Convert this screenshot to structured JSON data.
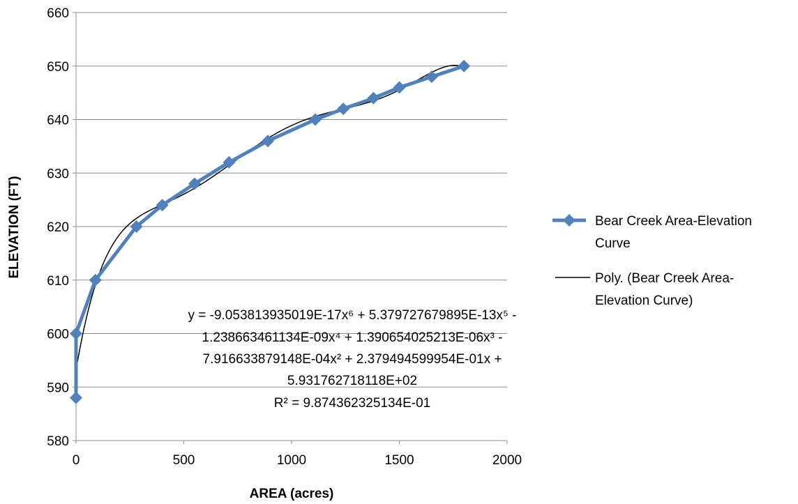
{
  "chart_data": {
    "type": "scatter",
    "xlabel": "AREA (acres)",
    "ylabel": "ELEVATION (FT)",
    "xlim": [
      0,
      2000
    ],
    "ylim": [
      580,
      660
    ],
    "xticks": [
      0,
      500,
      1000,
      1500,
      2000
    ],
    "yticks": [
      580,
      590,
      600,
      610,
      620,
      630,
      640,
      650,
      660
    ],
    "grid": "horizontal",
    "legend_position": "right",
    "series": [
      {
        "name": "Bear Creek Area-Elevation Curve",
        "legend_lines": [
          "Bear Creek Area-Elevation",
          "Curve"
        ],
        "color": "#4f81bd",
        "marker": "diamond",
        "x": [
          0,
          0,
          90,
          280,
          400,
          550,
          710,
          890,
          1110,
          1240,
          1380,
          1500,
          1650,
          1800
        ],
        "y": [
          588,
          600,
          610,
          620,
          624,
          628,
          632,
          636,
          640,
          642,
          644,
          646,
          648,
          650
        ]
      },
      {
        "name": "Poly. (Bear Creek Area-Elevation Curve)",
        "legend_lines": [
          "Poly. (Bear Creek Area-",
          "Elevation Curve)"
        ],
        "color": "#000000",
        "type": "polynomial trendline",
        "coefficients": [
          593.1762718118,
          0.2379494599954,
          -0.0007916633879148,
          1.390654025213e-06,
          -1.238663461134e-09,
          5.379727679895e-13,
          -9.053813935019e-17
        ],
        "x_range": [
          0,
          1800
        ]
      }
    ],
    "annotation": {
      "lines": [
        "y = -9.053813935019E-17x⁶ + 5.379727679895E-13x⁵ -",
        "1.238663461134E-09x⁴ + 1.390654025213E-06x³ -",
        "7.916633879148E-04x² + 2.379494599954E-01x +",
        "5.931762718118E+02",
        "R² = 9.874362325134E-01"
      ]
    }
  }
}
